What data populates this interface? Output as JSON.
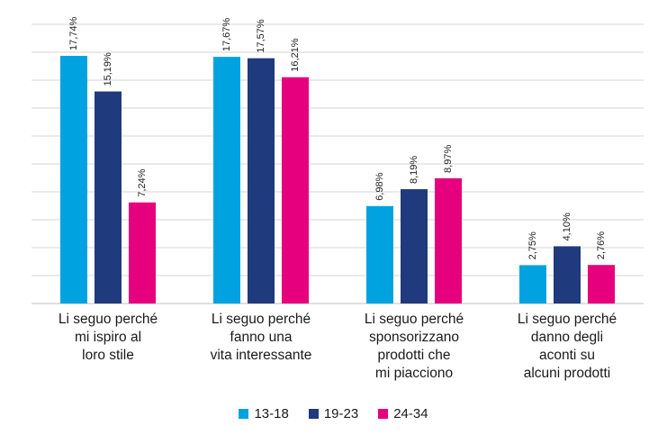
{
  "chart_data": {
    "type": "bar",
    "categories": [
      "Li seguo perché\nmi ispiro al\nloro stile",
      "Li seguo perché\nfanno una\nvita interessante",
      "Li seguo perché\nsponsorizzano\nprodotti che\nmi piacciono",
      "Li seguo perché\ndanno degli\naconti su\nalcuni prodotti"
    ],
    "series": [
      {
        "name": "13-18",
        "color": "#00a3e0",
        "values": [
          17.74,
          17.67,
          6.98,
          2.75
        ],
        "labels": [
          "17,74%",
          "17,67%",
          "6,98%",
          "2,75%"
        ]
      },
      {
        "name": "19-23",
        "color": "#1f3a7d",
        "values": [
          15.19,
          17.57,
          8.19,
          4.1
        ],
        "labels": [
          "15,19%",
          "17,57%",
          "8,19%",
          "4,10%"
        ]
      },
      {
        "name": "24-34",
        "color": "#e6007e",
        "values": [
          7.24,
          16.21,
          8.97,
          2.76
        ],
        "labels": [
          "7,24%",
          "16,21%",
          "8,97%",
          "2,76%"
        ]
      }
    ],
    "ylim": [
      0,
      20
    ],
    "grid": true,
    "legend_position": "bottom-center"
  }
}
